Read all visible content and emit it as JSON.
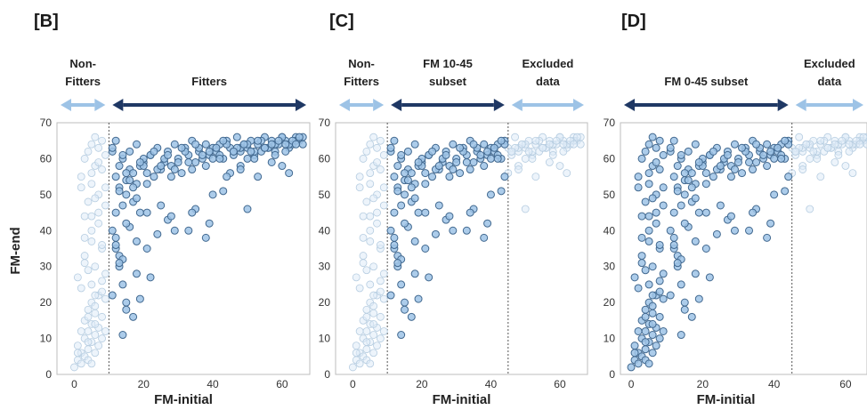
{
  "figure": {
    "ylabel": "FM-end"
  },
  "chart_data": [
    {
      "type": "scatter",
      "panel_label": "[B]",
      "xlabel": "FM-initial",
      "ylabel": "FM-end",
      "xlim": [
        -5,
        68
      ],
      "ylim": [
        0,
        70
      ],
      "x_ticks": [
        0,
        20,
        40,
        60
      ],
      "y_ticks": [
        0,
        10,
        20,
        30,
        40,
        50,
        60,
        70
      ],
      "grid": false,
      "divider_x": [
        10
      ],
      "regions": [
        {
          "label_lines": [
            "Non-",
            "Fitters"
          ],
          "x_start": -5,
          "x_end": 10,
          "arrow_color": "#9dc3e6"
        },
        {
          "label_lines": [
            "Fitters"
          ],
          "x_start": 10,
          "x_end": 68,
          "arrow_color": "#1f3864"
        }
      ],
      "series": [
        {
          "emphasis": "faded",
          "x_max": 10
        },
        {
          "emphasis": "highlight",
          "x_min": 10
        }
      ]
    },
    {
      "type": "scatter",
      "panel_label": "[C]",
      "xlabel": "FM-initial",
      "xlim": [
        -5,
        68
      ],
      "ylim": [
        0,
        70
      ],
      "x_ticks": [
        0,
        20,
        40,
        60
      ],
      "y_ticks": [
        0,
        10,
        20,
        30,
        40,
        50,
        60,
        70
      ],
      "grid": false,
      "divider_x": [
        10,
        45
      ],
      "regions": [
        {
          "label_lines": [
            "Non-",
            "Fitters"
          ],
          "x_start": -5,
          "x_end": 10,
          "arrow_color": "#9dc3e6"
        },
        {
          "label_lines": [
            "FM 10-45",
            "subset"
          ],
          "x_start": 10,
          "x_end": 45,
          "arrow_color": "#1f3864"
        },
        {
          "label_lines": [
            "Excluded",
            "data"
          ],
          "x_start": 45,
          "x_end": 68,
          "arrow_color": "#9dc3e6"
        }
      ],
      "series": [
        {
          "emphasis": "faded",
          "x_max": 10
        },
        {
          "emphasis": "highlight",
          "x_min": 10,
          "x_max": 45
        },
        {
          "emphasis": "faded",
          "x_min": 45
        }
      ]
    },
    {
      "type": "scatter",
      "panel_label": "[D]",
      "xlabel": "FM-initial",
      "xlim": [
        -3,
        66
      ],
      "ylim": [
        0,
        70
      ],
      "x_ticks": [
        0,
        20,
        40,
        60
      ],
      "y_ticks": [
        0,
        10,
        20,
        30,
        40,
        50,
        60,
        70
      ],
      "grid": false,
      "divider_x": [
        45
      ],
      "regions": [
        {
          "label_lines": [
            "FM 0-45 subset"
          ],
          "x_start": -3,
          "x_end": 45,
          "arrow_color": "#1f3864"
        },
        {
          "label_lines": [
            "Excluded",
            "data"
          ],
          "x_start": 45,
          "x_end": 66,
          "arrow_color": "#9dc3e6"
        }
      ],
      "series": [
        {
          "emphasis": "highlight",
          "x_max": 45
        },
        {
          "emphasis": "faded",
          "x_min": 45
        }
      ]
    }
  ],
  "data_points": {
    "x": [
      0,
      1,
      1,
      2,
      2,
      3,
      3,
      3,
      4,
      4,
      4,
      4,
      5,
      5,
      5,
      5,
      5,
      6,
      6,
      6,
      7,
      7,
      7,
      8,
      8,
      9,
      9,
      2,
      3,
      4,
      4,
      5,
      5,
      6,
      6,
      7,
      7,
      8,
      8,
      9,
      9,
      3,
      5,
      6,
      8,
      1,
      2,
      3,
      4,
      5,
      6,
      7,
      8,
      9,
      2,
      4,
      6,
      8,
      3,
      5,
      7,
      9,
      1,
      4,
      6,
      8,
      2,
      5,
      7,
      3,
      6,
      11,
      11,
      12,
      12,
      13,
      13,
      14,
      14,
      15,
      15,
      16,
      17,
      18,
      19,
      20,
      11,
      12,
      13,
      14,
      15,
      16,
      17,
      18,
      19,
      20,
      21,
      22,
      23,
      24,
      25,
      26,
      27,
      28,
      29,
      30,
      31,
      32,
      33,
      34,
      35,
      36,
      37,
      38,
      39,
      40,
      41,
      42,
      43,
      44,
      45,
      46,
      47,
      48,
      49,
      50,
      51,
      52,
      53,
      54,
      55,
      56,
      57,
      58,
      59,
      60,
      61,
      62,
      63,
      64,
      65,
      66,
      12,
      14,
      16,
      18,
      20,
      22,
      24,
      26,
      28,
      30,
      32,
      34,
      36,
      38,
      40,
      42,
      44,
      46,
      48,
      50,
      52,
      54,
      56,
      58,
      60,
      62,
      64,
      66,
      13,
      15,
      17,
      19,
      21,
      23,
      25,
      27,
      29,
      31,
      33,
      35,
      37,
      39,
      41,
      43,
      47,
      49,
      51,
      53,
      55,
      57,
      59,
      61,
      63,
      65,
      11,
      12,
      13,
      14,
      15,
      17,
      19,
      22,
      27,
      35,
      40,
      45,
      48,
      50,
      14,
      16,
      18,
      21,
      24,
      28,
      33,
      38,
      42,
      44,
      12,
      13,
      15,
      18,
      21,
      25,
      29,
      34,
      39,
      43,
      52,
      55,
      58,
      61,
      64,
      62,
      60,
      57,
      53,
      50,
      48,
      46
    ],
    "y": [
      2,
      4,
      8,
      3,
      6,
      5,
      10,
      15,
      4,
      7,
      12,
      18,
      3,
      9,
      14,
      20,
      25,
      6,
      11,
      17,
      8,
      13,
      22,
      10,
      16,
      12,
      21,
      55,
      60,
      48,
      62,
      53,
      64,
      58,
      66,
      50,
      63,
      57,
      65,
      52,
      61,
      38,
      44,
      30,
      35,
      27,
      24,
      33,
      29,
      40,
      19,
      45,
      36,
      28,
      12,
      16,
      22,
      26,
      31,
      37,
      42,
      47,
      6,
      9,
      14,
      23,
      52,
      56,
      59,
      44,
      49,
      62,
      40,
      55,
      35,
      58,
      30,
      60,
      25,
      50,
      20,
      57,
      48,
      53,
      45,
      59,
      63,
      65,
      52,
      61,
      54,
      62,
      56,
      64,
      58,
      60,
      53,
      61,
      55,
      63,
      57,
      59,
      62,
      58,
      64,
      60,
      56,
      63,
      61,
      65,
      59,
      62,
      60,
      64,
      61,
      63,
      62,
      64,
      60,
      65,
      63,
      61,
      66,
      62,
      64,
      63,
      65,
      61,
      64,
      62,
      66,
      63,
      65,
      62,
      64,
      66,
      65,
      63,
      64,
      66,
      65,
      64,
      45,
      47,
      54,
      49,
      58,
      61,
      57,
      60,
      55,
      59,
      62,
      57,
      63,
      58,
      60,
      61,
      64,
      62,
      63,
      64,
      62,
      65,
      63,
      64,
      66,
      64,
      65,
      66,
      51,
      56,
      52,
      59,
      56,
      62,
      58,
      61,
      57,
      63,
      59,
      64,
      61,
      62,
      63,
      65,
      63,
      64,
      62,
      65,
      63,
      64,
      65,
      64,
      65,
      66,
      22,
      38,
      33,
      11,
      18,
      16,
      21,
      27,
      43,
      46,
      50,
      56,
      58,
      46,
      32,
      41,
      37,
      45,
      39,
      44,
      40,
      38,
      60,
      55,
      36,
      31,
      42,
      28,
      35,
      47,
      40,
      45,
      42,
      51,
      60,
      63,
      61,
      62,
      64,
      56,
      58,
      59,
      55,
      60,
      57,
      62
    ]
  }
}
